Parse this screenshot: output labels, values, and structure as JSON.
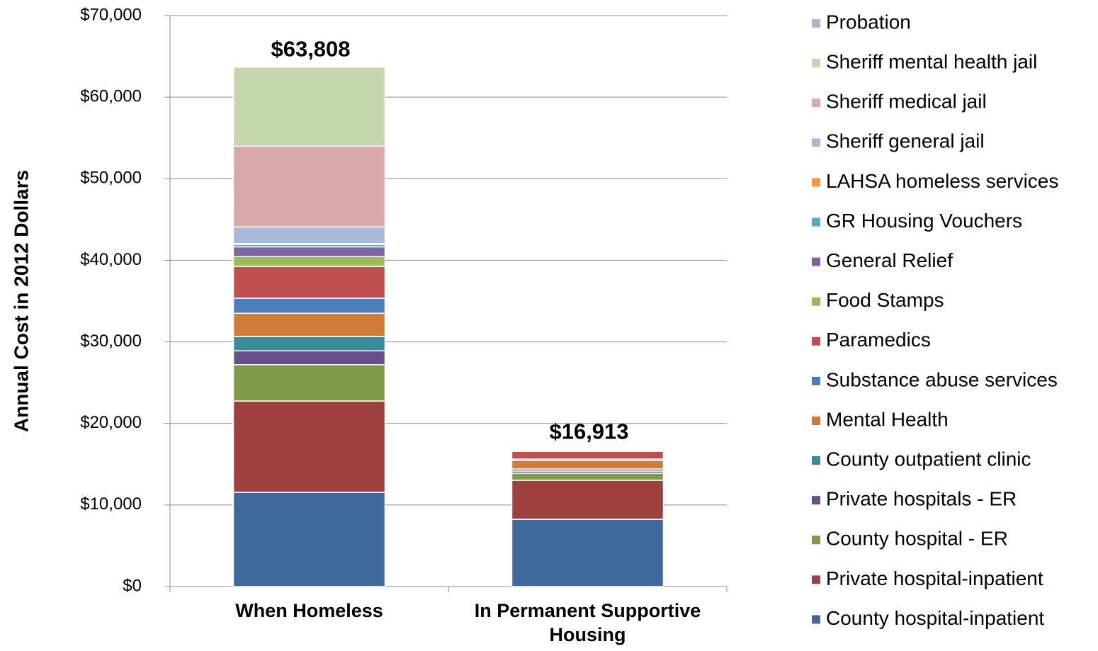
{
  "chart_data": {
    "type": "stacked_bar",
    "y_label": "Annual Cost in 2012 Dollars",
    "categories": [
      "When Homeless",
      "In Permanent Supportive Housing"
    ],
    "series": [
      {
        "name": "County hospital-inpatient",
        "color": "#3F689C",
        "values": [
          11550,
          8250
        ]
      },
      {
        "name": "Private hospital-inpatient",
        "color": "#9E403D",
        "values": [
          11200,
          4780
        ]
      },
      {
        "name": "County hospital - ER",
        "color": "#7F9A48",
        "values": [
          4450,
          870
        ]
      },
      {
        "name": "Private hospitals - ER",
        "color": "#6A4E8C",
        "values": [
          1700,
          260
        ]
      },
      {
        "name": "County outpatient clinic",
        "color": "#3A8A9E",
        "values": [
          1750,
          260
        ]
      },
      {
        "name": "Mental Health",
        "color": "#D07C36",
        "values": [
          2850,
          1040
        ]
      },
      {
        "name": "Substance abuse services",
        "color": "#4A7EBB",
        "values": [
          1850,
          170
        ]
      },
      {
        "name": "Paramedics",
        "color": "#C0504D",
        "values": [
          3900,
          950
        ]
      },
      {
        "name": "Food Stamps",
        "color": "#9BBB59",
        "values": [
          1200,
          100
        ]
      },
      {
        "name": "General Relief",
        "color": "#8064A2",
        "values": [
          1200,
          100
        ]
      },
      {
        "name": "GR Housing Vouchers",
        "color": "#4BACC6",
        "values": [
          300,
          0
        ]
      },
      {
        "name": "LAHSA homeless services",
        "color": "#F79646",
        "values": [
          100,
          0
        ]
      },
      {
        "name": "Sheriff general jail",
        "color": "#A9B9D9",
        "values": [
          2050,
          50
        ]
      },
      {
        "name": "Sheriff medical jail",
        "color": "#D9A9A9",
        "values": [
          9900,
          30
        ]
      },
      {
        "name": "Sheriff mental health jail",
        "color": "#C4D6AB",
        "values": [
          9700,
          30
        ]
      },
      {
        "name": "Probation",
        "color": "#B8B0D0",
        "values": [
          108,
          23
        ]
      }
    ],
    "totals": [
      63808,
      16913
    ],
    "total_labels": [
      "$63,808",
      "$16,913"
    ],
    "ylim": [
      0,
      70000
    ],
    "yticks": [
      {
        "value": 0,
        "label": "$0"
      },
      {
        "value": 10000,
        "label": "$10,000"
      },
      {
        "value": 20000,
        "label": "$20,000"
      },
      {
        "value": 30000,
        "label": "$30,000"
      },
      {
        "value": 40000,
        "label": "$40,000"
      },
      {
        "value": 50000,
        "label": "$50,000"
      },
      {
        "value": 60000,
        "label": "$60,000"
      },
      {
        "value": 70000,
        "label": "$70,000"
      }
    ],
    "grid": true,
    "legend": "right"
  }
}
